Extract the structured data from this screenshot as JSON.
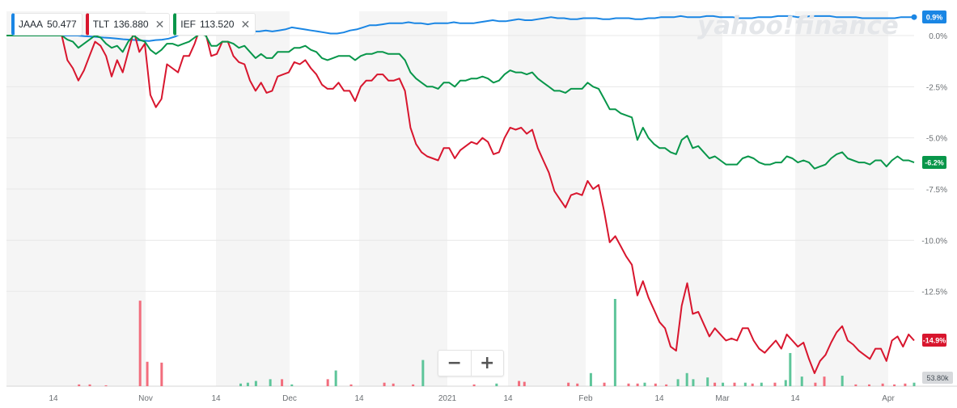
{
  "legend": [
    {
      "symbol": "JAAA",
      "value": "50.477",
      "color": "#1a86e4"
    },
    {
      "symbol": "TLT",
      "value": "136.880",
      "color": "#d8162e"
    },
    {
      "symbol": "IEF",
      "value": "113.520",
      "color": "#08964a"
    }
  ],
  "close_glyph": "✕",
  "zoom": {
    "minus": "−",
    "plus": "+"
  },
  "watermark": "yahoo!finance",
  "chart_data": {
    "type": "line",
    "x_labels": [
      "14",
      "Nov",
      "14",
      "Dec",
      "14",
      "2021",
      "14",
      "Feb",
      "14",
      "Mar",
      "14",
      "Apr"
    ],
    "ylim": [
      -17,
      0.5
    ],
    "y_ticks": [
      "0.0%",
      "-2.5%",
      "-5.0%",
      "-7.5%",
      "-10.0%",
      "-12.5%"
    ],
    "series": [
      {
        "name": "JAAA",
        "color": "#1a86e4",
        "end_label": "0.9%",
        "values": [
          0,
          0,
          0,
          0,
          0,
          0,
          0,
          0,
          0,
          0,
          0,
          0,
          -0.03,
          -0.05,
          -0.07,
          -0.1,
          -0.12,
          -0.15,
          -0.18,
          -0.2,
          -0.22,
          -0.25,
          -0.27,
          -0.22,
          -0.2,
          -0.15,
          -0.05,
          0.1,
          0.1,
          0.05,
          0.15,
          0.2,
          0.15,
          0.2,
          0.12,
          0.15,
          0.1,
          0.15,
          0.2,
          0.2,
          0.25,
          0.2,
          0.25,
          0.3,
          0.4,
          0.35,
          0.3,
          0.25,
          0.2,
          0.15,
          0.1,
          0.1,
          0.15,
          0.25,
          0.3,
          0.4,
          0.5,
          0.5,
          0.55,
          0.6,
          0.6,
          0.6,
          0.65,
          0.6,
          0.6,
          0.55,
          0.6,
          0.6,
          0.6,
          0.65,
          0.6,
          0.6,
          0.6,
          0.65,
          0.7,
          0.75,
          0.7,
          0.7,
          0.75,
          0.8,
          0.75,
          0.75,
          0.8,
          0.85,
          0.9,
          0.85,
          0.85,
          0.8,
          0.8,
          0.85,
          0.85,
          0.85,
          0.8,
          0.8,
          0.85,
          0.85,
          0.85,
          0.8,
          0.8,
          0.85,
          0.85,
          0.9,
          0.9,
          0.9,
          0.95,
          0.9,
          0.9,
          0.9,
          0.95,
          0.95,
          0.9,
          0.9,
          0.9,
          0.85,
          0.85,
          0.85,
          0.9,
          0.9,
          0.9,
          0.95,
          0.95,
          0.95,
          0.9,
          0.9,
          0.95,
          0.95,
          0.95,
          0.95,
          0.9,
          0.9,
          0.9,
          0.9,
          0.85,
          0.85,
          0.85,
          0.85,
          0.85,
          0.85,
          0.9,
          0.9,
          0.9
        ]
      },
      {
        "name": "TLT",
        "color": "#d8162e",
        "end_label": "-14.9%",
        "values": [
          0,
          0,
          0,
          0,
          0,
          0,
          0,
          0,
          0,
          0,
          0,
          -1.2,
          -1.6,
          -2.2,
          -1.7,
          -1.0,
          -0.3,
          -0.5,
          -1.0,
          -2.0,
          -1.2,
          -1.8,
          -0.8,
          0.2,
          -0.8,
          -0.4,
          -2.9,
          -3.5,
          -3.1,
          -1.4,
          -1.6,
          -1.8,
          -1.0,
          -1.0,
          -0.4,
          0.4,
          0.1,
          -1.0,
          -0.9,
          -0.3,
          -0.3,
          -1.0,
          -1.3,
          -1.4,
          -2.2,
          -2.7,
          -2.3,
          -2.8,
          -2.7,
          -2.0,
          -1.9,
          -1.8,
          -1.3,
          -1.4,
          -1.2,
          -1.6,
          -1.9,
          -2.4,
          -2.6,
          -2.6,
          -2.3,
          -2.7,
          -2.7,
          -3.2,
          -2.5,
          -2.2,
          -2.2,
          -1.9,
          -1.9,
          -2.2,
          -2.2,
          -2.1,
          -2.7,
          -4.5,
          -5.3,
          -5.7,
          -5.9,
          -6.0,
          -6.1,
          -5.5,
          -5.5,
          -6.0,
          -5.6,
          -5.4,
          -5.2,
          -5.3,
          -5.0,
          -5.2,
          -5.8,
          -5.7,
          -5.0,
          -4.5,
          -4.6,
          -4.5,
          -4.8,
          -4.6,
          -5.5,
          -6.1,
          -6.7,
          -7.6,
          -8.0,
          -8.4,
          -7.8,
          -7.7,
          -7.8,
          -7.1,
          -7.5,
          -7.3,
          -8.6,
          -10.1,
          -9.8,
          -10.3,
          -10.8,
          -11.2,
          -12.7,
          -12.0,
          -12.8,
          -13.4,
          -14.0,
          -14.3,
          -15.2,
          -15.4,
          -13.2,
          -12.1,
          -13.6,
          -13.5,
          -14.1,
          -14.7,
          -14.3,
          -14.6,
          -14.9,
          -14.8,
          -14.9,
          -14.3,
          -14.3,
          -14.9,
          -15.3,
          -15.5,
          -15.2,
          -14.9,
          -15.3,
          -14.6,
          -14.9,
          -15.2,
          -15.0,
          -15.8,
          -16.5,
          -15.9,
          -15.6,
          -15.0,
          -14.5,
          -14.2,
          -14.9,
          -15.1,
          -15.4,
          -15.6,
          -15.8,
          -15.3,
          -15.3,
          -15.9,
          -14.9,
          -14.7,
          -15.2,
          -14.6,
          -14.9
        ]
      },
      {
        "name": "IEF",
        "color": "#08964a",
        "end_label": "-6.2%",
        "values": [
          0,
          0,
          0,
          0,
          0,
          0,
          0,
          0,
          0,
          0,
          0,
          -0.2,
          -0.3,
          -0.6,
          -0.4,
          -0.2,
          0.0,
          -0.1,
          -0.4,
          -0.6,
          -0.5,
          -0.8,
          -0.3,
          0.0,
          -0.2,
          -0.3,
          -0.7,
          -0.9,
          -0.7,
          -0.4,
          -0.4,
          -0.5,
          -0.4,
          -0.3,
          -0.1,
          0.1,
          0.0,
          -0.5,
          -0.5,
          -0.3,
          -0.3,
          -0.4,
          -0.6,
          -0.5,
          -0.8,
          -1.1,
          -0.9,
          -1.1,
          -1.1,
          -0.8,
          -0.8,
          -0.8,
          -0.6,
          -0.6,
          -0.5,
          -0.7,
          -0.8,
          -1.1,
          -1.2,
          -1.1,
          -1.0,
          -1.0,
          -1.0,
          -1.2,
          -1.0,
          -0.9,
          -0.9,
          -0.8,
          -0.8,
          -0.9,
          -0.9,
          -0.9,
          -1.2,
          -1.8,
          -2.1,
          -2.3,
          -2.5,
          -2.5,
          -2.6,
          -2.3,
          -2.3,
          -2.5,
          -2.2,
          -2.2,
          -2.1,
          -2.1,
          -2.0,
          -2.1,
          -2.3,
          -2.2,
          -1.9,
          -1.7,
          -1.8,
          -1.8,
          -1.9,
          -1.8,
          -2.1,
          -2.3,
          -2.5,
          -2.7,
          -2.7,
          -2.8,
          -2.6,
          -2.6,
          -2.6,
          -2.3,
          -2.5,
          -2.6,
          -3.1,
          -3.6,
          -3.6,
          -3.8,
          -3.9,
          -4.0,
          -5.1,
          -4.5,
          -5.0,
          -5.3,
          -5.5,
          -5.5,
          -5.7,
          -5.8,
          -5.1,
          -4.9,
          -5.5,
          -5.4,
          -5.7,
          -6.0,
          -5.9,
          -6.1,
          -6.3,
          -6.3,
          -6.3,
          -6.0,
          -5.9,
          -6.0,
          -6.2,
          -6.3,
          -6.3,
          -6.2,
          -6.2,
          -5.9,
          -6.0,
          -6.2,
          -6.1,
          -6.2,
          -6.5,
          -6.4,
          -6.3,
          -6.0,
          -5.8,
          -5.7,
          -6.0,
          -6.1,
          -6.2,
          -6.2,
          -6.3,
          -6.1,
          -6.1,
          -6.4,
          -6.1,
          -5.9,
          -6.1,
          -6.1,
          -6.2
        ]
      }
    ],
    "volume": {
      "label": "53.80k",
      "bars": [
        {
          "pos": 0.07,
          "v": 0.02,
          "up": false
        },
        {
          "pos": 0.082,
          "v": 0.02,
          "up": false
        },
        {
          "pos": 0.1,
          "v": 0.01,
          "up": false
        },
        {
          "pos": 0.138,
          "v": 0.98,
          "up": false
        },
        {
          "pos": 0.146,
          "v": 0.28,
          "up": false
        },
        {
          "pos": 0.162,
          "v": 0.27,
          "up": false
        },
        {
          "pos": 0.25,
          "v": 0.03,
          "up": true
        },
        {
          "pos": 0.258,
          "v": 0.04,
          "up": true
        },
        {
          "pos": 0.267,
          "v": 0.06,
          "up": true
        },
        {
          "pos": 0.283,
          "v": 0.08,
          "up": true
        },
        {
          "pos": 0.296,
          "v": 0.08,
          "up": false
        },
        {
          "pos": 0.307,
          "v": 0.02,
          "up": true
        },
        {
          "pos": 0.347,
          "v": 0.08,
          "up": false
        },
        {
          "pos": 0.356,
          "v": 0.18,
          "up": true
        },
        {
          "pos": 0.373,
          "v": 0.02,
          "up": false
        },
        {
          "pos": 0.41,
          "v": 0.04,
          "up": false
        },
        {
          "pos": 0.42,
          "v": 0.03,
          "up": false
        },
        {
          "pos": 0.442,
          "v": 0.02,
          "up": false
        },
        {
          "pos": 0.453,
          "v": 0.3,
          "up": true
        },
        {
          "pos": 0.51,
          "v": 0.02,
          "up": false
        },
        {
          "pos": 0.535,
          "v": 0.03,
          "up": true
        },
        {
          "pos": 0.56,
          "v": 0.06,
          "up": false
        },
        {
          "pos": 0.566,
          "v": 0.05,
          "up": false
        },
        {
          "pos": 0.615,
          "v": 0.04,
          "up": false
        },
        {
          "pos": 0.625,
          "v": 0.03,
          "up": false
        },
        {
          "pos": 0.64,
          "v": 0.15,
          "up": true
        },
        {
          "pos": 0.655,
          "v": 0.04,
          "up": false
        },
        {
          "pos": 0.667,
          "v": 1.0,
          "up": true
        },
        {
          "pos": 0.682,
          "v": 0.03,
          "up": false
        },
        {
          "pos": 0.692,
          "v": 0.03,
          "up": false
        },
        {
          "pos": 0.7,
          "v": 0.04,
          "up": true
        },
        {
          "pos": 0.712,
          "v": 0.03,
          "up": false
        },
        {
          "pos": 0.724,
          "v": 0.02,
          "up": false
        },
        {
          "pos": 0.737,
          "v": 0.08,
          "up": true
        },
        {
          "pos": 0.747,
          "v": 0.15,
          "up": true
        },
        {
          "pos": 0.754,
          "v": 0.08,
          "up": true
        },
        {
          "pos": 0.77,
          "v": 0.1,
          "up": true
        },
        {
          "pos": 0.778,
          "v": 0.04,
          "up": false
        },
        {
          "pos": 0.787,
          "v": 0.04,
          "up": true
        },
        {
          "pos": 0.8,
          "v": 0.04,
          "up": false
        },
        {
          "pos": 0.812,
          "v": 0.04,
          "up": true
        },
        {
          "pos": 0.82,
          "v": 0.03,
          "up": false
        },
        {
          "pos": 0.83,
          "v": 0.04,
          "up": true
        },
        {
          "pos": 0.845,
          "v": 0.04,
          "up": false
        },
        {
          "pos": 0.857,
          "v": 0.07,
          "up": true
        },
        {
          "pos": 0.862,
          "v": 0.38,
          "up": true
        },
        {
          "pos": 0.875,
          "v": 0.11,
          "up": true
        },
        {
          "pos": 0.89,
          "v": 0.04,
          "up": false
        },
        {
          "pos": 0.9,
          "v": 0.11,
          "up": false
        },
        {
          "pos": 0.92,
          "v": 0.12,
          "up": true
        },
        {
          "pos": 0.935,
          "v": 0.02,
          "up": false
        },
        {
          "pos": 0.95,
          "v": 0.02,
          "up": false
        },
        {
          "pos": 0.965,
          "v": 0.03,
          "up": false
        },
        {
          "pos": 0.978,
          "v": 0.02,
          "up": false
        },
        {
          "pos": 0.99,
          "v": 0.03,
          "up": false
        },
        {
          "pos": 1.0,
          "v": 0.04,
          "up": true
        }
      ]
    }
  }
}
